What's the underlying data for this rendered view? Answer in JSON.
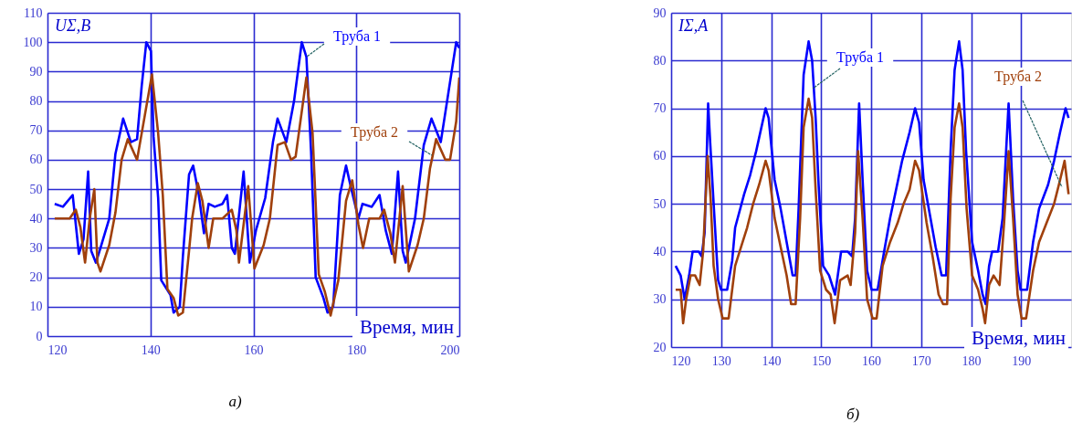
{
  "chart_data": [
    {
      "type": "line",
      "xlabel": "Время, мин",
      "ylabel": "UΣ,В",
      "xlim": [
        120,
        200
      ],
      "ylim": [
        0,
        110
      ],
      "xticks": [
        120,
        140,
        160,
        180,
        200
      ],
      "yticks": [
        0,
        10,
        20,
        30,
        40,
        50,
        60,
        70,
        80,
        90,
        100,
        110
      ],
      "grid": true,
      "annotations": [
        "а)"
      ],
      "series": [
        {
          "name": "Труба 1",
          "color": "#0000ff",
          "x": [
            121.4,
            123,
            124.9,
            126.1,
            127,
            127.9,
            128.5,
            129.4,
            130.3,
            132,
            133.2,
            134.7,
            136.2,
            137.4,
            138.3,
            139.2,
            140.1,
            140.6,
            141.5,
            142.1,
            143.9,
            144.5,
            145.7,
            146.3,
            147.5,
            148.3,
            149.4,
            150.4,
            151.3,
            152.5,
            154,
            154.9,
            155.8,
            156.4,
            158.1,
            159.3,
            160.5,
            162.3,
            163.8,
            164.7,
            166.4,
            167.9,
            169.4,
            170.3,
            171.2,
            172.1,
            173.6,
            174.4,
            175.5,
            176.8,
            178,
            178.9,
            180.4,
            181.2,
            183,
            184.5,
            185.7,
            186.9,
            188.1,
            189,
            189.6,
            191.4,
            193.1,
            194.6,
            196.4,
            197.9,
            199.4,
            200
          ],
          "values": [
            45,
            44,
            48,
            28,
            33,
            56,
            29,
            25,
            30,
            40,
            62,
            74,
            66,
            67,
            85,
            100,
            97,
            68,
            47,
            19,
            14,
            8,
            10,
            27,
            55,
            58,
            48,
            35,
            45,
            44,
            45,
            48,
            30,
            28,
            56,
            25,
            36,
            47,
            66,
            74,
            66,
            80,
            100,
            95,
            63,
            20,
            13,
            8,
            10,
            48,
            58,
            51,
            40,
            45,
            44,
            48,
            36,
            28,
            56,
            29,
            25,
            40,
            65,
            74,
            66,
            83,
            100,
            98
          ]
        },
        {
          "name": "Труба 2",
          "color": "#a0400c",
          "x": [
            121.4,
            124.3,
            125.5,
            126.4,
            127.3,
            128.2,
            129.1,
            129.7,
            130.3,
            132,
            133.2,
            134.4,
            135.6,
            137.4,
            138.9,
            140.3,
            141.5,
            142.4,
            143.3,
            144.5,
            145.4,
            146.3,
            147.5,
            148.1,
            149.2,
            150.1,
            151.3,
            152.2,
            154,
            155.8,
            156.7,
            157.2,
            159,
            160.2,
            162,
            163.2,
            164.7,
            166.1,
            167.3,
            168.2,
            170.3,
            171.5,
            172.7,
            173.9,
            175,
            176.5,
            178,
            179.2,
            180.4,
            181.3,
            182.5,
            184.5,
            185.4,
            186.6,
            187.5,
            189,
            190.2,
            191.9,
            193.1,
            194.3,
            195.5,
            197.3,
            198.2,
            199.4,
            200
          ],
          "values": [
            40,
            40,
            43,
            37,
            25,
            40,
            50,
            25,
            22,
            31,
            42,
            60,
            67,
            60,
            75,
            89,
            69,
            48,
            16,
            13,
            7,
            8,
            29,
            40,
            52,
            46,
            30,
            40,
            40,
            43,
            36,
            25,
            51,
            23,
            31,
            40,
            65,
            66,
            60,
            61,
            88,
            69,
            21,
            15,
            7,
            19,
            46,
            53,
            38,
            30,
            40,
            40,
            43,
            35,
            25,
            51,
            22,
            31,
            40,
            57,
            67,
            60,
            60,
            73,
            88
          ]
        }
      ]
    },
    {
      "type": "line",
      "xlabel": "Время, мин",
      "ylabel": "IΣ,А",
      "xlim": [
        120,
        200
      ],
      "ylim": [
        20,
        90
      ],
      "xticks": [
        120,
        130,
        140,
        150,
        160,
        170,
        180,
        190
      ],
      "yticks": [
        20,
        30,
        40,
        50,
        60,
        70,
        80,
        90
      ],
      "grid": true,
      "annotations": [
        "б)"
      ],
      "series": [
        {
          "name": "Труба 1",
          "color": "#0000ff",
          "x": [
            120.9,
            121.9,
            122.7,
            123.6,
            124.3,
            125.5,
            126.1,
            126.7,
            127.4,
            127.8,
            128.5,
            129.4,
            130,
            131.2,
            132.2,
            132.8,
            134.6,
            135.8,
            137,
            138.9,
            139.5,
            140.7,
            141.9,
            143.1,
            144.3,
            144.9,
            145.5,
            146.5,
            147.5,
            148.2,
            148.9,
            149.5,
            150.4,
            151.6,
            152.8,
            154,
            155.3,
            156.2,
            156.8,
            157.6,
            158.3,
            159.2,
            160.1,
            161.3,
            162.6,
            163.8,
            165,
            166.2,
            167.7,
            168.8,
            169.6,
            170.5,
            171.7,
            172.9,
            174.1,
            175,
            175.9,
            176.7,
            177.6,
            178.3,
            179,
            180.2,
            181.4,
            182.3,
            182.9,
            183.6,
            184.2,
            185.4,
            186.3,
            187.5,
            188.4,
            189.3,
            189.9,
            191.2,
            192.4,
            193.6,
            195.4,
            196.6,
            197.8,
            198.9,
            199.5
          ],
          "values": [
            37,
            35,
            30,
            35,
            40,
            40,
            39,
            44,
            71,
            63,
            50,
            34,
            32,
            32,
            38,
            45,
            52,
            56,
            61,
            70,
            68,
            55,
            49,
            42,
            35,
            35,
            49,
            77,
            84,
            80,
            68,
            54,
            37,
            35,
            31,
            40,
            40,
            39,
            47,
            71,
            55,
            36,
            32,
            32,
            40,
            47,
            53,
            59,
            65,
            70,
            67,
            55,
            48,
            41,
            35,
            35,
            61,
            78,
            84,
            78,
            61,
            42,
            36,
            31,
            29,
            37,
            40,
            40,
            47,
            71,
            51,
            36,
            32,
            32,
            42,
            49,
            54,
            59,
            65,
            70,
            68
          ]
        },
        {
          "name": "Труба 2",
          "color": "#a0400c",
          "x": [
            120.9,
            121.9,
            122.4,
            123,
            123.9,
            124.8,
            125.7,
            126.4,
            127.3,
            127.9,
            128.5,
            129.4,
            130.3,
            131.5,
            132.8,
            134,
            135.2,
            136.4,
            137.6,
            138.9,
            139.5,
            140.7,
            141.9,
            143.1,
            144,
            144.9,
            145.8,
            146.5,
            147.5,
            148.2,
            148.9,
            149.8,
            151,
            151.9,
            152.7,
            153.8,
            155.3,
            155.9,
            156.8,
            157.4,
            158.3,
            159.2,
            160.3,
            161.1,
            162.3,
            163.8,
            165.3,
            166.5,
            167.7,
            168.8,
            169.6,
            171.1,
            172.3,
            173.5,
            174.4,
            175.2,
            175.9,
            176.7,
            177.6,
            178.3,
            179.1,
            180.2,
            181.4,
            182.3,
            182.8,
            183.6,
            184.5,
            185.7,
            186.6,
            187.5,
            188.4,
            189.3,
            190.1,
            191,
            192.4,
            193.6,
            195.1,
            196.6,
            197.8,
            198.7,
            199.5
          ],
          "values": [
            32,
            32,
            25,
            30,
            35,
            35,
            33,
            40,
            60,
            51,
            37,
            30,
            26,
            26,
            37,
            41,
            45,
            50,
            54,
            59,
            57,
            47,
            41,
            35,
            29,
            29,
            47,
            66,
            72,
            68,
            53,
            36,
            32,
            31,
            25,
            34,
            35,
            33,
            44,
            61,
            47,
            30,
            26,
            26,
            37,
            42,
            46,
            50,
            53,
            59,
            57,
            46,
            39,
            31,
            29,
            29,
            51,
            66,
            71,
            66,
            49,
            35,
            32,
            28,
            25,
            33,
            35,
            33,
            46,
            61,
            47,
            31,
            26,
            26,
            36,
            42,
            46,
            50,
            55,
            59,
            52
          ]
        }
      ]
    }
  ]
}
